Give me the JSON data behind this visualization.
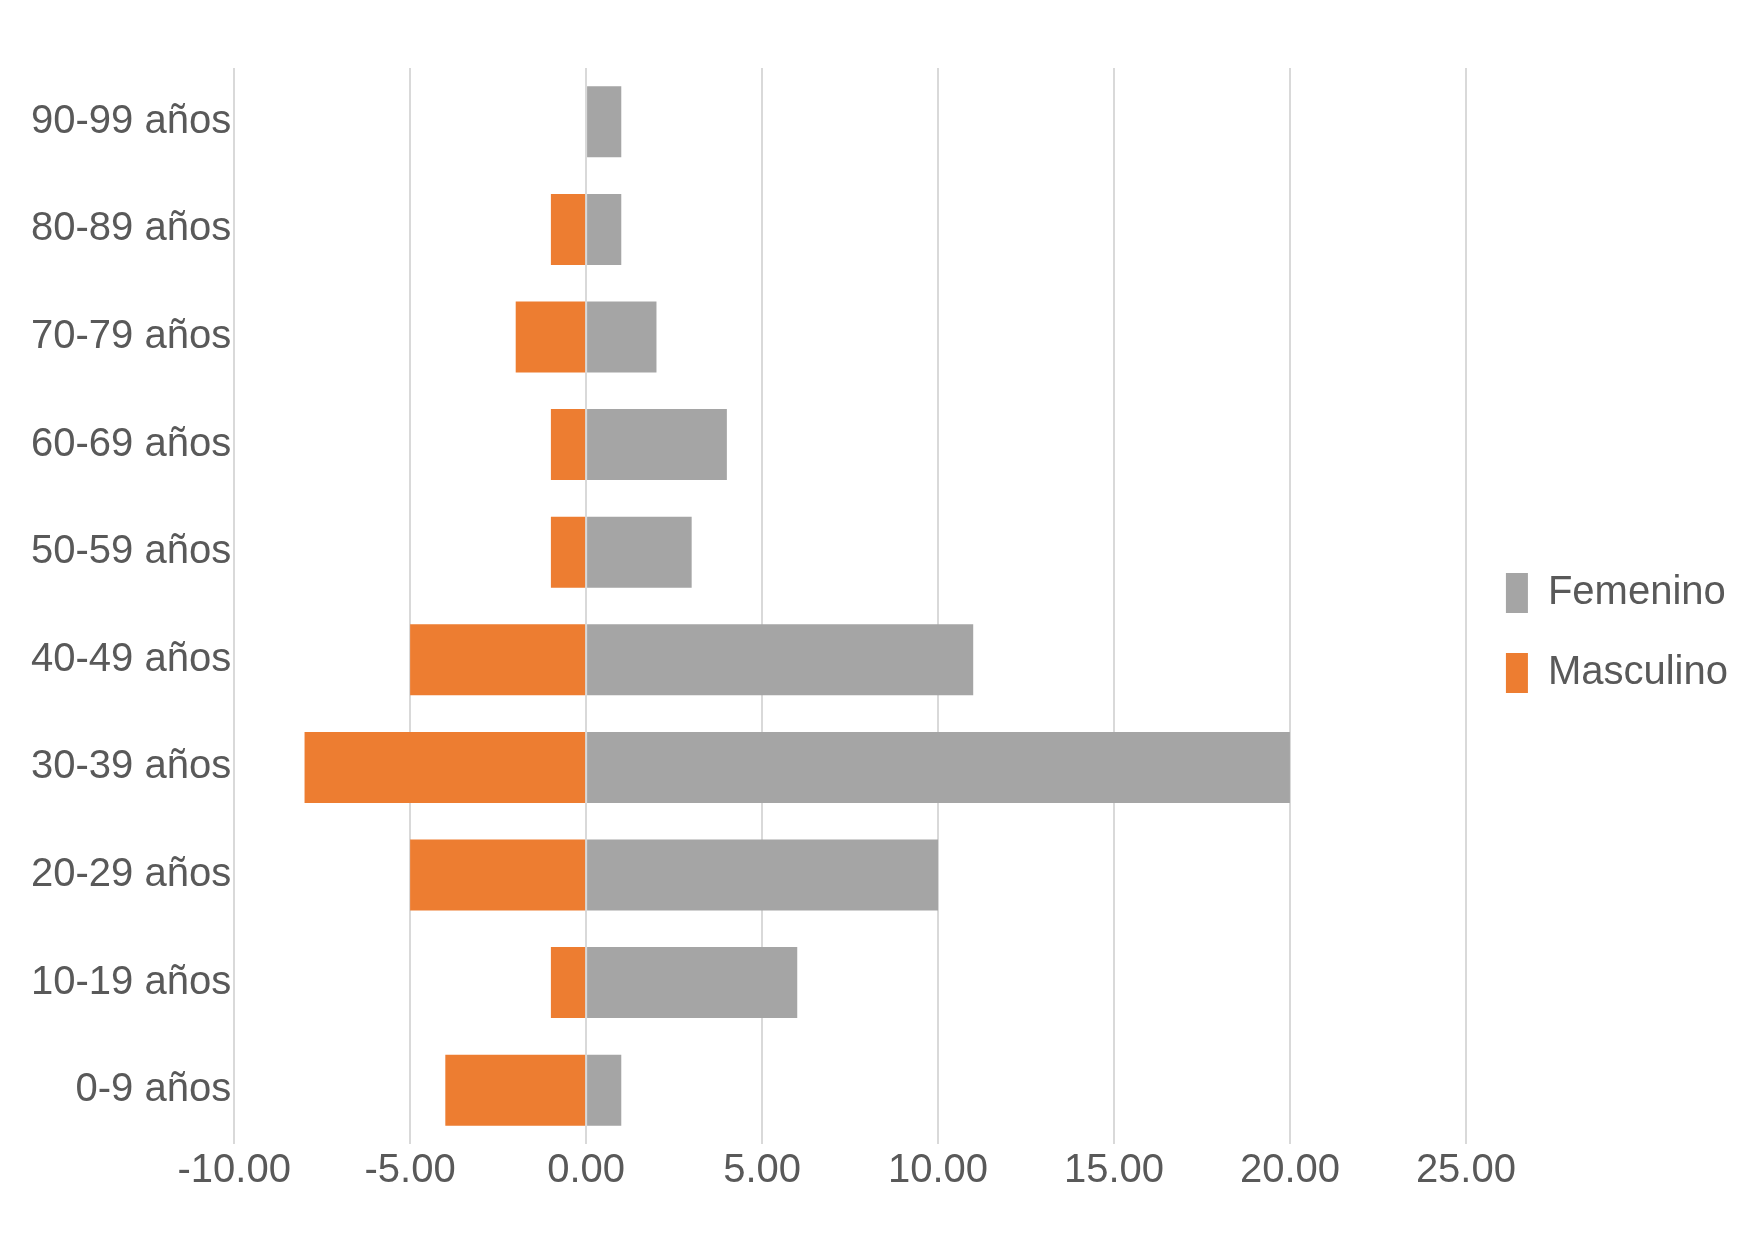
{
  "chart_data": {
    "type": "bar",
    "orientation": "horizontal",
    "stacked": true,
    "categories": [
      "90-99 años",
      "80-89 años",
      "70-79 años",
      "60-69 años",
      "50-59 años",
      "40-49 años",
      "30-39 años",
      "20-29 años",
      "10-19 años",
      "0-9 años"
    ],
    "series": [
      {
        "name": "Femenino",
        "color": "#a5a5a5",
        "values": [
          1,
          1,
          2,
          4,
          3,
          11,
          20,
          10,
          6,
          1
        ]
      },
      {
        "name": "Masculino",
        "color": "#ed7d31",
        "values": [
          null,
          -1,
          -2,
          -1,
          -1,
          -5,
          -8,
          -5,
          -1,
          -4
        ]
      }
    ],
    "xlim": [
      -10,
      25
    ],
    "xticks": [
      {
        "value": -10,
        "label": "-10.00"
      },
      {
        "value": -5,
        "label": "-5.00"
      },
      {
        "value": 0,
        "label": "0.00"
      },
      {
        "value": 5,
        "label": "5.00"
      },
      {
        "value": 10,
        "label": "10.00"
      },
      {
        "value": 15,
        "label": "15.00"
      },
      {
        "value": 20,
        "label": "20.00"
      },
      {
        "value": 25,
        "label": "25.00"
      }
    ],
    "grid": "x",
    "legend": "right"
  }
}
